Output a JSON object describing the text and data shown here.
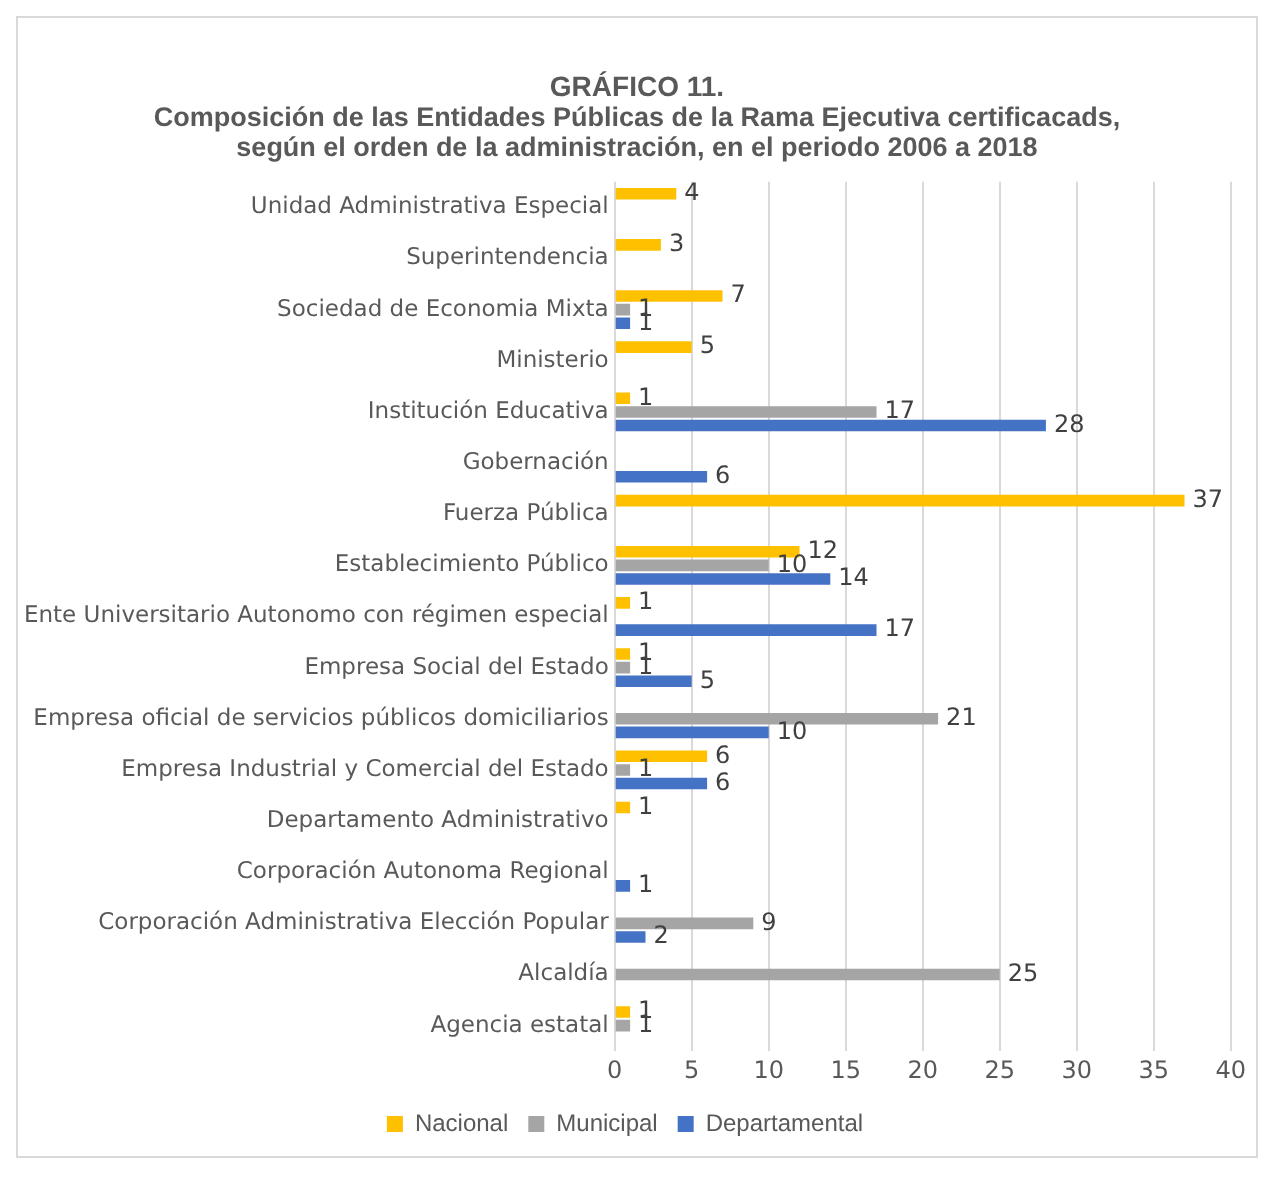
{
  "chart_data": {
    "type": "bar",
    "orientation": "horizontal",
    "title": "GRÁFICO 11.",
    "subtitle": "Composición de las Entidades Públicas de la Rama Ejecutiva certificacads, según el orden de la administración, en el periodo 2006 a 2018",
    "categories": [
      "Unidad Administrativa Especial",
      "Superintendencia",
      "Sociedad de Economia Mixta",
      "Ministerio",
      "Institución Educativa",
      "Gobernación",
      "Fuerza Pública",
      "Establecimiento Público",
      "Ente Universitario Autonomo con régimen especial",
      "Empresa Social del Estado",
      "Empresa oficial de servicios públicos domiciliarios",
      "Empresa Industrial y Comercial del Estado",
      "Departamento Administrativo",
      "Corporación Autonoma Regional",
      "Corporación Administrativa Elección Popular",
      "Alcaldía",
      "Agencia estatal"
    ],
    "series": [
      {
        "name": "Nacional",
        "color": "#ffc000",
        "values": [
          4,
          3,
          7,
          5,
          1,
          null,
          37,
          12,
          1,
          1,
          null,
          6,
          1,
          null,
          null,
          null,
          1
        ]
      },
      {
        "name": "Municipal",
        "color": "#a5a5a5",
        "values": [
          null,
          null,
          1,
          null,
          17,
          null,
          null,
          10,
          null,
          1,
          21,
          1,
          null,
          null,
          9,
          25,
          1
        ]
      },
      {
        "name": "Departamental",
        "color": "#4472c4",
        "values": [
          null,
          null,
          1,
          null,
          28,
          6,
          null,
          14,
          17,
          5,
          10,
          6,
          null,
          1,
          2,
          null,
          null
        ]
      }
    ],
    "xlim": [
      0,
      40
    ],
    "xticks": [
      0,
      5,
      10,
      15,
      20,
      25,
      30,
      35,
      40
    ],
    "grid": "x",
    "legend": "bottom",
    "data_labels": true
  }
}
